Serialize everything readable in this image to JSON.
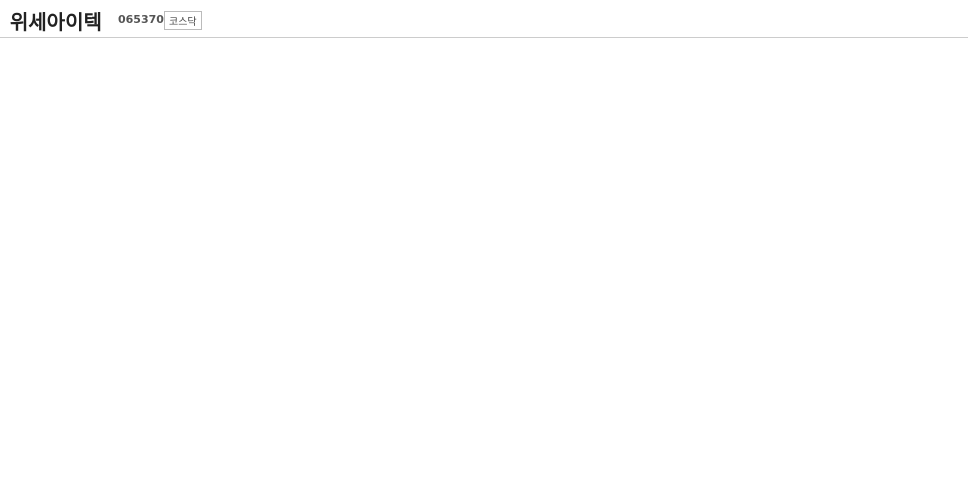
{
  "header": {
    "title": "위세아이텍",
    "code": "065370",
    "market_badge": "코스닥"
  },
  "chart_data": {}
}
